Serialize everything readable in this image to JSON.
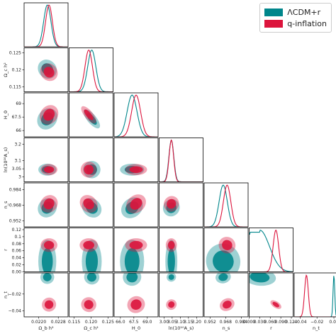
{
  "chart_data": {
    "type": "triangle",
    "params": [
      {
        "key": "obh2",
        "label": "Ω_b h²",
        "ticks": [
          0.022,
          0.0228
        ],
        "tickLabels": [
          "0.0220",
          "0.0228"
        ],
        "range": [
          0.0214,
          0.0232
        ]
      },
      {
        "key": "och2",
        "label": "Ω_c h²",
        "ticks": [
          0.115,
          0.12,
          0.125
        ],
        "tickLabels": [
          "0.115",
          "0.120",
          "0.125"
        ],
        "range": [
          0.1135,
          0.1265
        ]
      },
      {
        "key": "H0",
        "label": "H_0",
        "ticks": [
          66,
          67.5,
          69
        ],
        "tickLabels": [
          "66.0",
          "67.5",
          "69.0"
        ],
        "range": [
          65.3,
          70.2
        ]
      },
      {
        "key": "lnAs",
        "label": "ln(10¹⁰A_s)",
        "ticks": [
          3,
          3.05,
          3.1,
          3.15,
          3.2
        ],
        "tickLabels": [
          "3.00",
          "3.05",
          "3.10",
          "3.15",
          "3.20"
        ],
        "range": [
          2.97,
          3.24
        ]
      },
      {
        "key": "ns",
        "label": "n_s",
        "ticks": [
          0.952,
          0.968,
          0.984
        ],
        "tickLabels": [
          "0.952",
          "0.968",
          "0.984"
        ],
        "range": [
          0.946,
          0.991
        ]
      },
      {
        "key": "r",
        "label": "r",
        "ticks": [
          0,
          0.03,
          0.06,
          0.09,
          0.12
        ],
        "tickLabels": [
          "0.000",
          "0.030",
          "0.060",
          "0.090",
          "0.120"
        ],
        "range": [
          0,
          0.125
        ]
      },
      {
        "key": "nt",
        "label": "n_t",
        "ticks": [
          -0.04,
          -0.02,
          0
        ],
        "tickLabels": [
          "−0.04",
          "−0.02",
          "0.00"
        ],
        "range": [
          -0.047,
          0.005
        ]
      }
    ],
    "yTickLabels": {
      "och2": [
        "0.125",
        "0.12",
        "0.115"
      ],
      "H0": [
        "69",
        "67.5",
        "66"
      ],
      "lnAs": [
        "3.2",
        "3.1",
        "3",
        "3.05"
      ],
      "ns": [
        "0.984",
        "0.968",
        "0.952"
      ],
      "r": [
        "0.12",
        "0.1",
        "0.08",
        "0.06",
        "0.04",
        "0.02",
        "0.00"
      ],
      "nt": [
        "−0.02",
        "−0.04"
      ]
    },
    "series": [
      {
        "name": "ΛCDM+r",
        "color": "#00868B",
        "mean": {
          "obh2": 0.02235,
          "och2": 0.1202,
          "H0": 67.3,
          "lnAs": 3.045,
          "ns": 0.9655,
          "r": 0.03,
          "nt": 0.0
        },
        "sd": {
          "obh2": 0.00015,
          "och2": 0.0012,
          "H0": 0.55,
          "lnAs": 0.015,
          "ns": 0.0042,
          "r": 0.025,
          "nt": 0.001
        }
      },
      {
        "name": "q-inflation",
        "color": "#DC143C",
        "mean": {
          "obh2": 0.02242,
          "och2": 0.1193,
          "H0": 67.75,
          "lnAs": 3.045,
          "ns": 0.9695,
          "r": 0.076,
          "nt": -0.0325
        },
        "sd": {
          "obh2": 0.00014,
          "och2": 0.0011,
          "H0": 0.5,
          "lnAs": 0.014,
          "ns": 0.0038,
          "r": 0.008,
          "nt": 0.0022
        }
      }
    ],
    "legend": "top-right"
  }
}
